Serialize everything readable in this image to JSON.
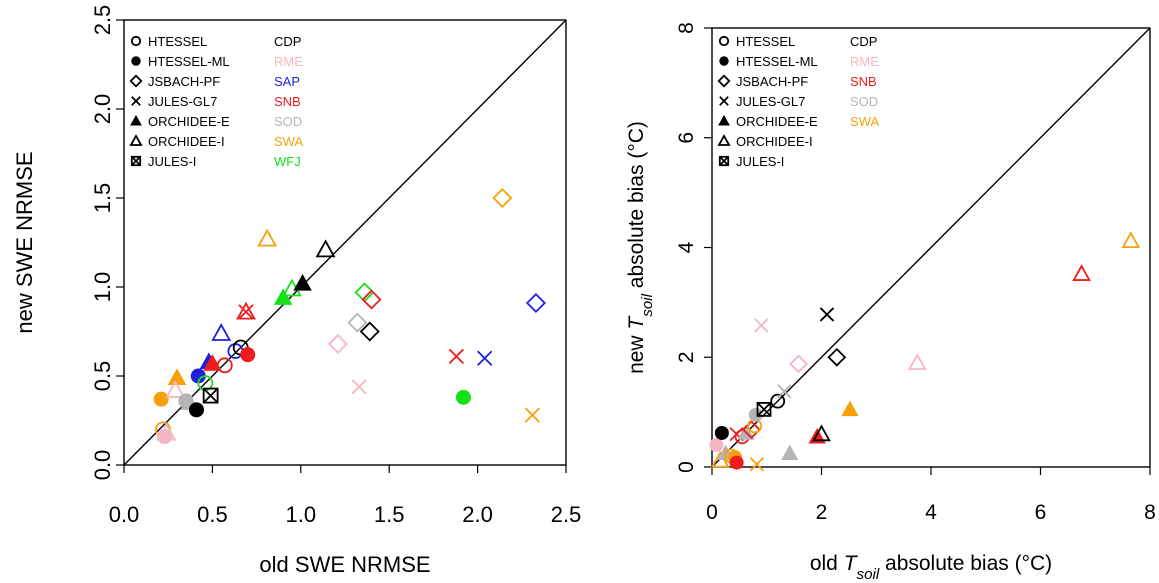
{
  "chart_data": [
    {
      "type": "scatter",
      "title": "",
      "xlabel": "old SWE NRMSE",
      "ylabel": "new SWE NRMSE",
      "xlim": [
        0,
        2.5
      ],
      "ylim": [
        0,
        2.5
      ],
      "xticks": [
        "0.0",
        "0.5",
        "1.0",
        "1.5",
        "2.0",
        "2.5"
      ],
      "yticks": [
        "0.0",
        "0.5",
        "1.0",
        "1.5",
        "2.0",
        "2.5"
      ],
      "one_to_one_line": true,
      "grid": false,
      "legend_placement": "top-left",
      "legend_models": [
        {
          "label": "HTESSEL",
          "marker": "open-circle"
        },
        {
          "label": "HTESSEL-ML",
          "marker": "filled-circle"
        },
        {
          "label": "JSBACH-PF",
          "marker": "open-diamond"
        },
        {
          "label": "JULES-GL7",
          "marker": "cross"
        },
        {
          "label": "ORCHIDEE-E",
          "marker": "filled-triangle"
        },
        {
          "label": "ORCHIDEE-I",
          "marker": "open-triangle"
        },
        {
          "label": "JULES-I",
          "marker": "boxed-cross"
        }
      ],
      "legend_sites": [
        {
          "label": "CDP",
          "color": "#000000"
        },
        {
          "label": "RME",
          "color": "#f4b6c2"
        },
        {
          "label": "SAP",
          "color": "#1f1fe0"
        },
        {
          "label": "SNB",
          "color": "#ee1c1c"
        },
        {
          "label": "SOD",
          "color": "#b5b5b5"
        },
        {
          "label": "SWA",
          "color": "#f7a10a"
        },
        {
          "label": "WFJ",
          "color": "#18e018"
        }
      ],
      "points": [
        {
          "x": 0.22,
          "y": 0.2,
          "m": "open-circle",
          "c": "#f7a10a"
        },
        {
          "x": 0.21,
          "y": 0.37,
          "m": "filled-circle",
          "c": "#f7a10a"
        },
        {
          "x": 0.24,
          "y": 0.18,
          "m": "open-triangle",
          "c": "#f4b6c2"
        },
        {
          "x": 0.23,
          "y": 0.16,
          "m": "filled-circle",
          "c": "#f4b6c2"
        },
        {
          "x": 0.3,
          "y": 0.49,
          "m": "filled-triangle",
          "c": "#f7a10a"
        },
        {
          "x": 0.29,
          "y": 0.42,
          "m": "open-triangle",
          "c": "#f4b6c2"
        },
        {
          "x": 0.35,
          "y": 0.36,
          "m": "filled-circle",
          "c": "#b5b5b5"
        },
        {
          "x": 0.37,
          "y": 0.35,
          "m": "filled-triangle",
          "c": "#b5b5b5"
        },
        {
          "x": 0.41,
          "y": 0.31,
          "m": "filled-circle",
          "c": "#000000"
        },
        {
          "x": 0.42,
          "y": 0.5,
          "m": "filled-circle",
          "c": "#1f1fe0"
        },
        {
          "x": 0.46,
          "y": 0.46,
          "m": "open-circle",
          "c": "#18e018"
        },
        {
          "x": 0.49,
          "y": 0.39,
          "m": "boxed-cross",
          "c": "#000000"
        },
        {
          "x": 0.48,
          "y": 0.58,
          "m": "filled-triangle",
          "c": "#1f1fe0"
        },
        {
          "x": 0.5,
          "y": 0.57,
          "m": "filled-triangle",
          "c": "#ee1c1c"
        },
        {
          "x": 0.55,
          "y": 0.74,
          "m": "open-triangle",
          "c": "#1f1fe0"
        },
        {
          "x": 0.57,
          "y": 0.56,
          "m": "open-circle",
          "c": "#ee1c1c"
        },
        {
          "x": 0.63,
          "y": 0.64,
          "m": "open-circle",
          "c": "#1f1fe0"
        },
        {
          "x": 0.66,
          "y": 0.66,
          "m": "open-circle",
          "c": "#000000"
        },
        {
          "x": 0.69,
          "y": 0.86,
          "m": "open-triangle",
          "c": "#ee1c1c"
        },
        {
          "x": 0.69,
          "y": 0.86,
          "m": "cross",
          "c": "#ee1c1c"
        },
        {
          "x": 0.7,
          "y": 0.62,
          "m": "filled-circle",
          "c": "#ee1c1c"
        },
        {
          "x": 0.81,
          "y": 1.27,
          "m": "open-triangle",
          "c": "#f7a10a"
        },
        {
          "x": 0.9,
          "y": 0.94,
          "m": "filled-triangle",
          "c": "#18e018"
        },
        {
          "x": 0.95,
          "y": 0.99,
          "m": "open-triangle",
          "c": "#18e018"
        },
        {
          "x": 1.01,
          "y": 1.02,
          "m": "filled-triangle",
          "c": "#000000"
        },
        {
          "x": 1.14,
          "y": 1.21,
          "m": "open-triangle",
          "c": "#000000"
        },
        {
          "x": 1.21,
          "y": 0.68,
          "m": "open-diamond",
          "c": "#f4b6c2"
        },
        {
          "x": 1.32,
          "y": 0.8,
          "m": "open-diamond",
          "c": "#b5b5b5"
        },
        {
          "x": 1.33,
          "y": 0.44,
          "m": "cross",
          "c": "#f4b6c2"
        },
        {
          "x": 1.36,
          "y": 0.97,
          "m": "open-diamond",
          "c": "#18e018"
        },
        {
          "x": 1.4,
          "y": 0.93,
          "m": "open-diamond",
          "c": "#ee1c1c"
        },
        {
          "x": 1.39,
          "y": 0.75,
          "m": "open-diamond",
          "c": "#000000"
        },
        {
          "x": 1.88,
          "y": 0.61,
          "m": "cross",
          "c": "#ee1c1c"
        },
        {
          "x": 1.92,
          "y": 0.38,
          "m": "filled-circle",
          "c": "#18e018"
        },
        {
          "x": 2.04,
          "y": 0.6,
          "m": "cross",
          "c": "#1f1fe0"
        },
        {
          "x": 2.14,
          "y": 1.5,
          "m": "open-diamond",
          "c": "#f7a10a"
        },
        {
          "x": 2.31,
          "y": 0.28,
          "m": "cross",
          "c": "#f7a10a"
        },
        {
          "x": 2.33,
          "y": 0.91,
          "m": "open-diamond",
          "c": "#1f1fe0"
        }
      ]
    },
    {
      "type": "scatter",
      "title": "",
      "xlabel_parts": [
        "old ",
        "T",
        "soil",
        " absolute bias (°C)"
      ],
      "ylabel_parts": [
        "new ",
        "T",
        "soil",
        " absolute bias (°C)"
      ],
      "xlim": [
        0,
        8
      ],
      "ylim": [
        0,
        8
      ],
      "xticks": [
        "0",
        "2",
        "4",
        "6",
        "8"
      ],
      "yticks": [
        "0",
        "2",
        "4",
        "6",
        "8"
      ],
      "one_to_one_line": true,
      "grid": false,
      "legend_placement": "top-left",
      "legend_models": [
        {
          "label": "HTESSEL",
          "marker": "open-circle"
        },
        {
          "label": "HTESSEL-ML",
          "marker": "filled-circle"
        },
        {
          "label": "JSBACH-PF",
          "marker": "open-diamond"
        },
        {
          "label": "JULES-GL7",
          "marker": "cross"
        },
        {
          "label": "ORCHIDEE-E",
          "marker": "filled-triangle"
        },
        {
          "label": "ORCHIDEE-I",
          "marker": "open-triangle"
        },
        {
          "label": "JULES-I",
          "marker": "boxed-cross"
        }
      ],
      "legend_sites": [
        {
          "label": "CDP",
          "color": "#000000"
        },
        {
          "label": "RME",
          "color": "#f4b6c2"
        },
        {
          "label": "SNB",
          "color": "#ee1c1c"
        },
        {
          "label": "SOD",
          "color": "#b5b5b5"
        },
        {
          "label": "SWA",
          "color": "#f7a10a"
        }
      ],
      "points": [
        {
          "x": 0.08,
          "y": 0.4,
          "m": "filled-circle",
          "c": "#f4b6c2"
        },
        {
          "x": 0.18,
          "y": 0.62,
          "m": "filled-circle",
          "c": "#000000"
        },
        {
          "x": 0.15,
          "y": 0.12,
          "m": "open-triangle",
          "c": "#f7a10a"
        },
        {
          "x": 0.25,
          "y": 0.25,
          "m": "filled-triangle",
          "c": "#b5b5b5"
        },
        {
          "x": 0.35,
          "y": 0.2,
          "m": "open-circle",
          "c": "#f7a10a"
        },
        {
          "x": 0.42,
          "y": 0.18,
          "m": "filled-circle",
          "c": "#f7a10a"
        },
        {
          "x": 0.45,
          "y": 0.08,
          "m": "filled-circle",
          "c": "#ee1c1c"
        },
        {
          "x": 0.45,
          "y": 0.6,
          "m": "cross",
          "c": "#ee1c1c"
        },
        {
          "x": 0.55,
          "y": 0.55,
          "m": "open-circle",
          "c": "#ee1c1c"
        },
        {
          "x": 0.62,
          "y": 0.62,
          "m": "filled-triangle",
          "c": "#b5b5b5"
        },
        {
          "x": 0.72,
          "y": 0.68,
          "m": "open-diamond",
          "c": "#ee1c1c"
        },
        {
          "x": 0.78,
          "y": 0.75,
          "m": "open-circle",
          "c": "#f7a10a"
        },
        {
          "x": 0.8,
          "y": 0.95,
          "m": "filled-circle",
          "c": "#b5b5b5"
        },
        {
          "x": 0.82,
          "y": 0.05,
          "m": "cross",
          "c": "#f7a10a"
        },
        {
          "x": 0.9,
          "y": 2.58,
          "m": "cross",
          "c": "#f4b6c2"
        },
        {
          "x": 0.95,
          "y": 1.05,
          "m": "boxed-cross",
          "c": "#000000"
        },
        {
          "x": 1.2,
          "y": 1.2,
          "m": "open-circle",
          "c": "#000000"
        },
        {
          "x": 1.32,
          "y": 1.38,
          "m": "cross",
          "c": "#b5b5b5"
        },
        {
          "x": 1.42,
          "y": 0.25,
          "m": "filled-triangle",
          "c": "#b5b5b5"
        },
        {
          "x": 1.58,
          "y": 1.88,
          "m": "open-diamond",
          "c": "#f4b6c2"
        },
        {
          "x": 1.92,
          "y": 0.55,
          "m": "filled-triangle",
          "c": "#ee1c1c"
        },
        {
          "x": 2.0,
          "y": 0.6,
          "m": "open-triangle",
          "c": "#000000"
        },
        {
          "x": 2.1,
          "y": 2.78,
          "m": "cross",
          "c": "#000000"
        },
        {
          "x": 2.28,
          "y": 2.0,
          "m": "open-diamond",
          "c": "#000000"
        },
        {
          "x": 2.52,
          "y": 1.05,
          "m": "filled-triangle",
          "c": "#f7a10a"
        },
        {
          "x": 3.75,
          "y": 1.9,
          "m": "open-triangle",
          "c": "#f4b6c2"
        },
        {
          "x": 6.75,
          "y": 3.52,
          "m": "open-triangle",
          "c": "#ee1c1c"
        },
        {
          "x": 7.65,
          "y": 4.12,
          "m": "open-triangle",
          "c": "#f7a10a"
        }
      ]
    }
  ]
}
